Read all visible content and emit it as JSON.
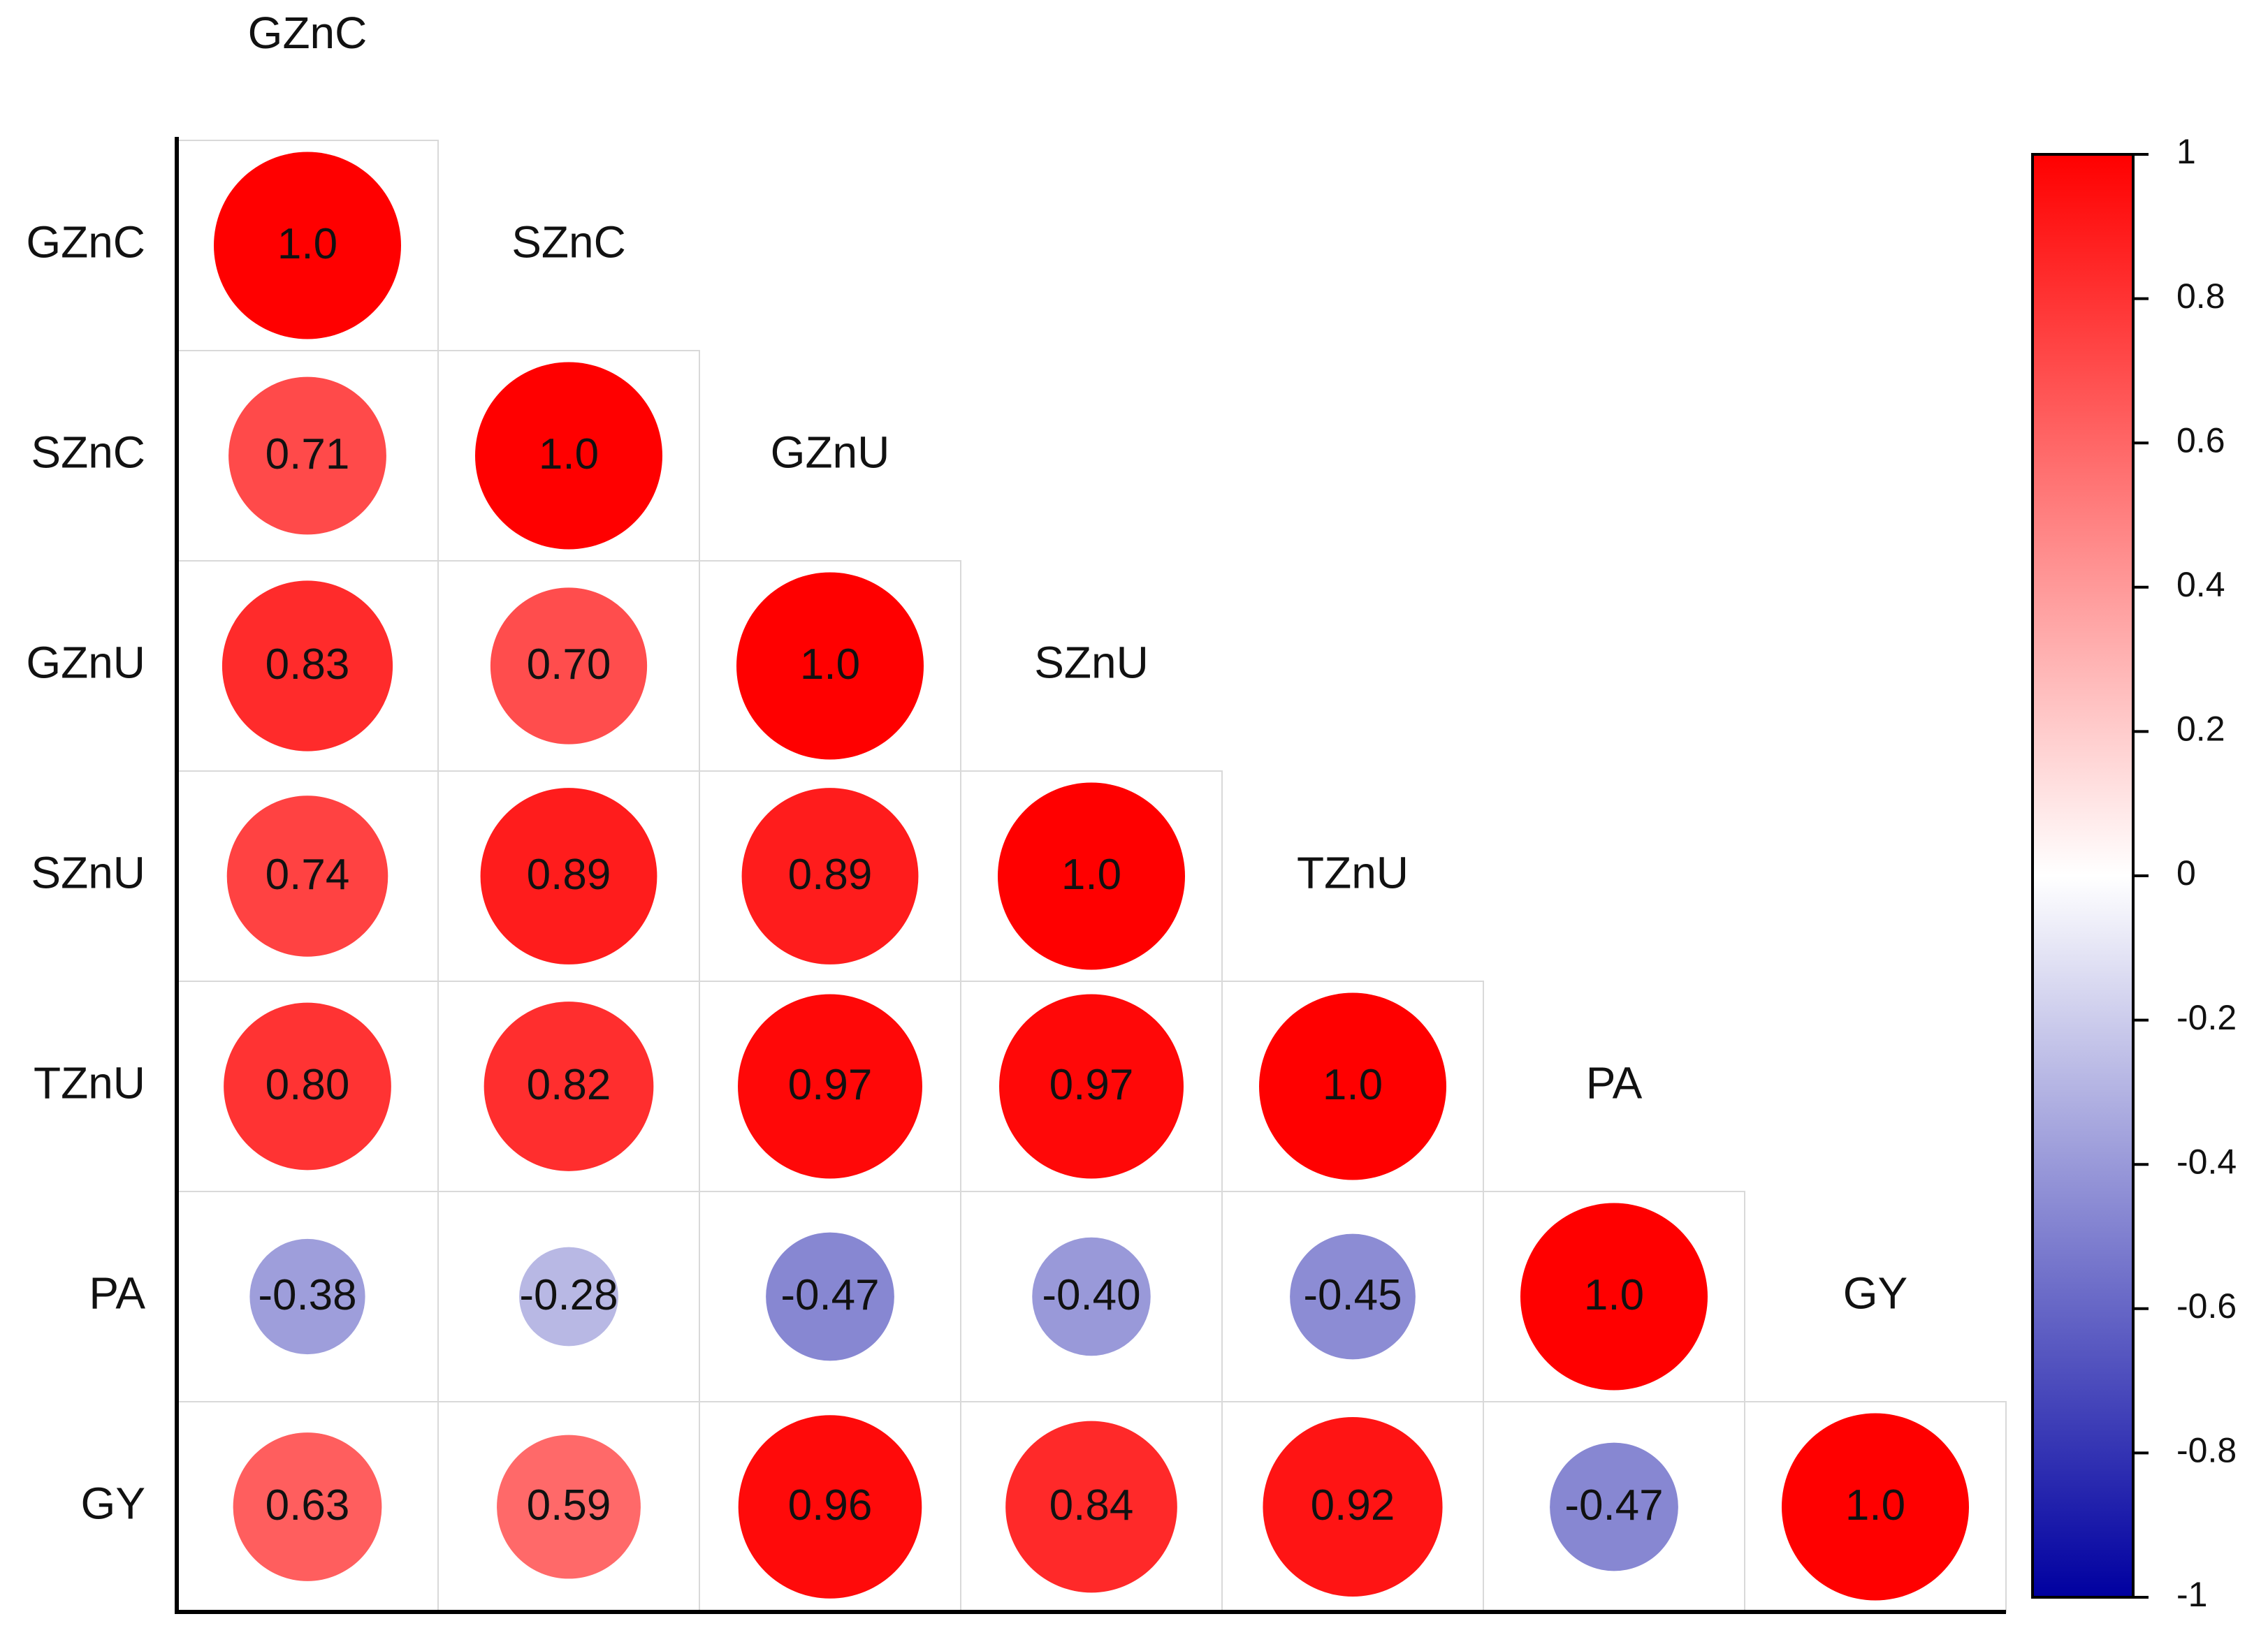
{
  "chart_data": {
    "type": "corrplot",
    "categories": [
      "GZnC",
      "SZnC",
      "GZnU",
      "SZnU",
      "TZnU",
      "PA",
      "GY"
    ],
    "values": [
      [
        1.0
      ],
      [
        0.71,
        1.0
      ],
      [
        0.83,
        0.7,
        1.0
      ],
      [
        0.74,
        0.89,
        0.89,
        1.0
      ],
      [
        0.8,
        0.82,
        0.97,
        0.97,
        1.0
      ],
      [
        -0.38,
        -0.28,
        -0.47,
        -0.4,
        -0.45,
        1.0
      ],
      [
        0.63,
        0.59,
        0.96,
        0.84,
        0.92,
        -0.47,
        1.0
      ]
    ],
    "value_labels": [
      [
        "1.0"
      ],
      [
        "0.71",
        "1.0"
      ],
      [
        "0.83",
        "0.70",
        "1.0"
      ],
      [
        "0.74",
        "0.89",
        "0.89",
        "1.0"
      ],
      [
        "0.80",
        "0.82",
        "0.97",
        "0.97",
        "1.0"
      ],
      [
        "-0.38",
        "-0.28",
        "-0.47",
        "-0.40",
        "-0.45",
        "1.0"
      ],
      [
        "0.63",
        "0.59",
        "0.96",
        "0.84",
        "0.92",
        "-0.47",
        "1.0"
      ]
    ],
    "colors": [
      "#0000a0",
      "#ffffff",
      "#ff0000"
    ],
    "clim": [
      -1,
      1
    ],
    "cticks": [
      1,
      0.8,
      0.6,
      0.4,
      0.2,
      0,
      -0.2,
      -0.4,
      -0.6,
      -0.8,
      -1
    ]
  }
}
